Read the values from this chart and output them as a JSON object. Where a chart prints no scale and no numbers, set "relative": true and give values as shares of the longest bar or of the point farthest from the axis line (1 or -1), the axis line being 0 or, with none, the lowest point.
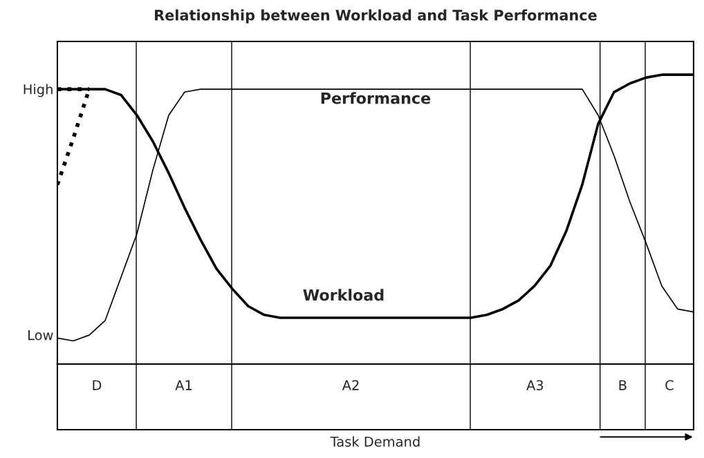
{
  "chart_data": {
    "type": "line",
    "title": "Relationship between Workload and Task Performance",
    "relative": true,
    "categories": [
      null,
      null,
      null,
      null,
      null,
      null,
      null,
      null,
      null,
      null,
      null,
      null,
      null,
      null,
      null,
      null,
      null,
      null,
      null,
      null,
      null,
      null,
      null,
      null,
      null,
      null,
      null,
      null,
      null,
      null,
      null,
      null,
      null,
      null,
      null,
      null,
      null,
      null,
      null,
      null,
      null
    ],
    "series": [
      {
        "color": "#000000",
        "line_style": "solid",
        "values": [
          0.95,
          0.95,
          0.95,
          0.95,
          0.93,
          0.86,
          0.77,
          0.66,
          0.54,
          0.43,
          0.33,
          0.26,
          0.2,
          0.17,
          0.16,
          0.16,
          0.16,
          0.16,
          0.16,
          0.16,
          0.16,
          0.16,
          0.16,
          0.16,
          0.16,
          0.16,
          0.16,
          0.17,
          0.19,
          0.22,
          0.27,
          0.34,
          0.46,
          0.62,
          0.83,
          0.94,
          0.97,
          0.99,
          1.0,
          1.0,
          1.0
        ]
      },
      {
        "color": "#000000",
        "line_style": "solid",
        "values": [
          0.09,
          0.08,
          0.1,
          0.15,
          0.3,
          0.45,
          0.67,
          0.86,
          0.94,
          0.95,
          0.95,
          0.95,
          0.95,
          0.95,
          0.95,
          0.95,
          0.95,
          0.95,
          0.95,
          0.95,
          0.95,
          0.95,
          0.95,
          0.95,
          0.95,
          0.95,
          0.95,
          0.95,
          0.95,
          0.95,
          0.95,
          0.95,
          0.95,
          0.95,
          0.86,
          0.72,
          0.56,
          0.42,
          0.27,
          0.19,
          0.18
        ]
      },
      {
        "color": "#000000",
        "line_style": "dotted",
        "values": [
          0.95,
          0.95,
          0.95,
          null,
          null,
          null,
          null,
          null,
          null,
          null,
          null,
          null,
          null,
          null,
          null,
          null,
          null,
          null,
          null,
          null,
          null,
          null,
          null,
          null,
          null,
          null,
          null,
          null,
          null,
          null,
          null,
          null,
          null,
          null,
          null,
          null,
          null,
          null,
          null,
          null,
          null
        ]
      },
      {
        "color": "#000000",
        "line_style": "dotted",
        "values": [
          0.62,
          0.78,
          0.95,
          null,
          null,
          null,
          null,
          null,
          null,
          null,
          null,
          null,
          null,
          null,
          null,
          null,
          null,
          null,
          null,
          null,
          null,
          null,
          null,
          null,
          null,
          null,
          null,
          null,
          null,
          null,
          null,
          null,
          null,
          null,
          null,
          null,
          null,
          null,
          null,
          null,
          null
        ]
      }
    ],
    "annotations": [
      "High",
      "Low",
      "Performance",
      "Workload",
      "D",
      "A1",
      "A2",
      "A3",
      "B",
      "C",
      "Task Demand"
    ]
  }
}
